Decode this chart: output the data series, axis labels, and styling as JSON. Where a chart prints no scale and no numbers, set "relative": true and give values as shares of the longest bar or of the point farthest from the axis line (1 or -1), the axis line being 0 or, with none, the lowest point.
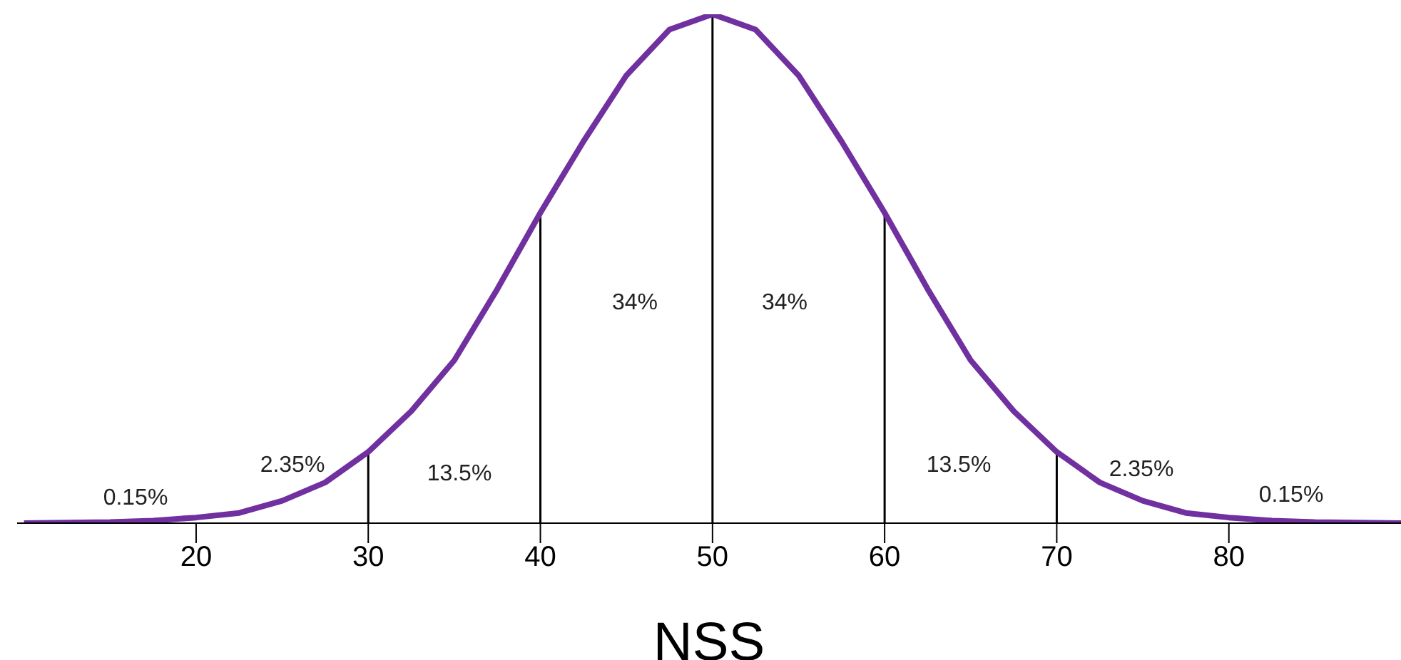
{
  "chart_data": {
    "type": "line",
    "relative": true,
    "xlabel": "NSS",
    "x": [
      10,
      15,
      17.5,
      20,
      22.5,
      25,
      27.5,
      30,
      32.5,
      35,
      37.5,
      40,
      42.5,
      45,
      47.5,
      50,
      52.5,
      55,
      57.5,
      60,
      62.5,
      65,
      67.5,
      70,
      72.5,
      75,
      77.5,
      80,
      82.5,
      85,
      90
    ],
    "series": [
      {
        "color": "#7030a0",
        "values": [
          0,
          0.002,
          0.005,
          0.011,
          0.02,
          0.044,
          0.08,
          0.14,
          0.22,
          0.32,
          0.46,
          0.61,
          0.75,
          0.88,
          0.97,
          1,
          0.97,
          0.88,
          0.75,
          0.61,
          0.46,
          0.32,
          0.22,
          0.14,
          0.08,
          0.044,
          0.02,
          0.011,
          0.005,
          0.002,
          0
        ]
      }
    ],
    "xlim": [
      9.6,
      90
    ],
    "xticks": [
      20,
      30,
      40,
      50,
      60,
      70,
      80
    ],
    "ref_lines": [
      {
        "axis": "x",
        "value": 30,
        "color": "#000000"
      },
      {
        "axis": "x",
        "value": 40,
        "color": "#000000"
      },
      {
        "axis": "x",
        "value": 50,
        "color": "#000000"
      },
      {
        "axis": "x",
        "value": 60,
        "color": "#000000"
      },
      {
        "axis": "x",
        "value": 70,
        "color": "#000000"
      }
    ],
    "annotations": [
      "0.15%",
      "2.35%",
      "13.5%",
      "34%",
      "34%",
      "13.5%",
      "2.35%",
      "0.15%"
    ],
    "grid": false,
    "legend": false,
    "marker": "none",
    "line_style": "solid"
  }
}
